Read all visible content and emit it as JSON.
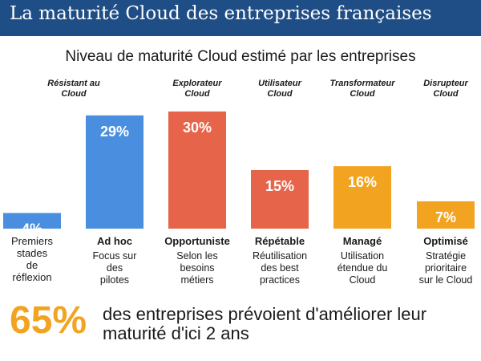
{
  "header": {
    "title": "La maturité Cloud des entreprises françaises"
  },
  "subtitle": "Niveau de maturité Cloud estimé par les entreprises",
  "chart_data": {
    "type": "bar",
    "categories": [
      "Premiers stades de réflexion",
      "Ad hoc",
      "Opportuniste",
      "Répétable",
      "Managé",
      "Optimisé"
    ],
    "profiles": [
      "Résistant au Cloud",
      "Explorateur Cloud",
      "Utilisateur Cloud",
      "Transformateur Cloud",
      "Disrupteur Cloud"
    ],
    "descriptions": [
      "",
      "Focus sur des pilotes",
      "Selon les besoins métiers",
      "Réutilisation des best practices",
      "Utilisation étendue du Cloud",
      "Stratégie prioritaire sur le Cloud"
    ],
    "values": [
      4,
      29,
      30,
      15,
      16,
      7
    ],
    "value_labels": [
      "4%",
      "29%",
      "30%",
      "15%",
      "16%",
      "7%"
    ],
    "colors": [
      "#4a8edf",
      "#4a8edf",
      "#e5644a",
      "#e5644a",
      "#f2a421",
      "#f2a421"
    ],
    "ylim": [
      0,
      30
    ]
  },
  "footer": {
    "stat": "65%",
    "text": "des entreprises prévoient d'améliorer leur maturité d'ici 2 ans"
  }
}
